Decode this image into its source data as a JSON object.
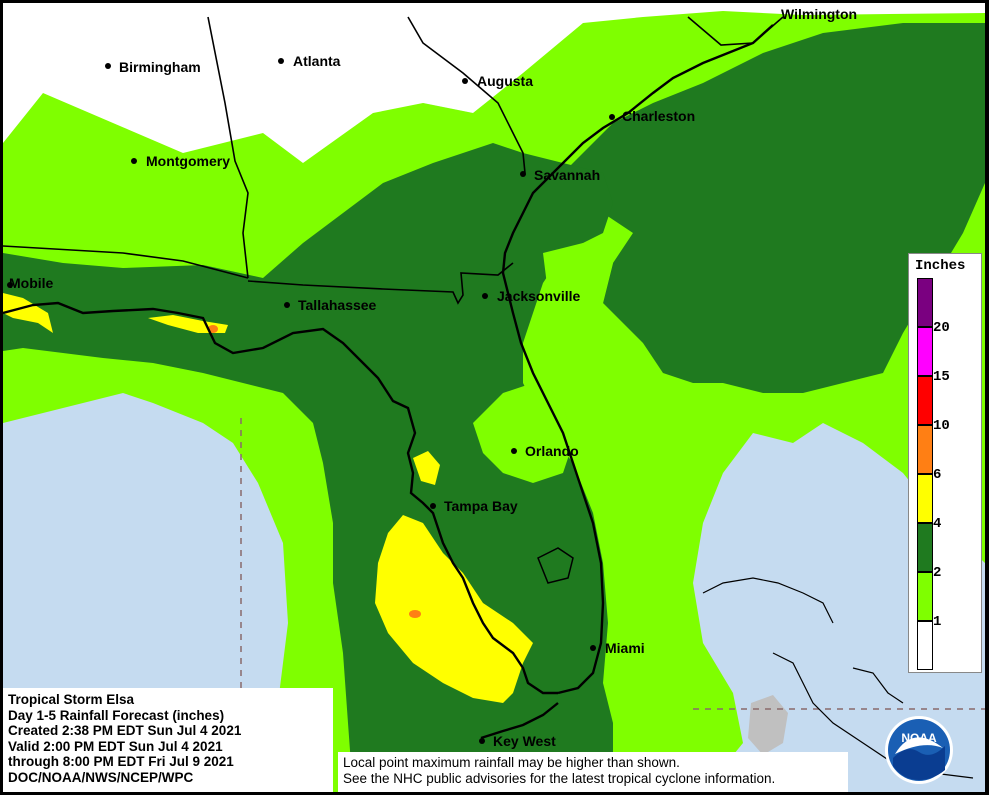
{
  "cities": [
    {
      "name": "Wilmington",
      "label": "Wilmington",
      "dot": false
    },
    {
      "name": "Birmingham",
      "label": "Birmingham",
      "dot": true
    },
    {
      "name": "Atlanta",
      "label": "Atlanta",
      "dot": true
    },
    {
      "name": "Augusta",
      "label": "Augusta",
      "dot": true
    },
    {
      "name": "Charleston",
      "label": "Charleston",
      "dot": true
    },
    {
      "name": "Montgomery",
      "label": "Montgomery",
      "dot": true
    },
    {
      "name": "Savannah",
      "label": "Savannah",
      "dot": true
    },
    {
      "name": "Mobile",
      "label": "Mobile",
      "dot": true
    },
    {
      "name": "Tallahassee",
      "label": "Tallahassee",
      "dot": true
    },
    {
      "name": "Jacksonville",
      "label": "Jacksonville",
      "dot": true
    },
    {
      "name": "Orlando",
      "label": "Orlando",
      "dot": true
    },
    {
      "name": "Tampa Bay",
      "label": "Tampa Bay",
      "dot": true
    },
    {
      "name": "Miami",
      "label": "Miami",
      "dot": true
    },
    {
      "name": "Key West",
      "label": "Key West",
      "dot": true
    }
  ],
  "legend": {
    "title": "Inches",
    "levels": [
      {
        "label": "20",
        "color": "#7a0080"
      },
      {
        "label": "15",
        "color": "#ff00ff"
      },
      {
        "label": "10",
        "color": "#ff0000"
      },
      {
        "label": "6",
        "color": "#ff7f14"
      },
      {
        "label": "4",
        "color": "#ffff00"
      },
      {
        "label": "2",
        "color": "#1f7a1f"
      },
      {
        "label": "1",
        "color": "#7fff00"
      },
      {
        "label": "",
        "color": "#ffffff"
      }
    ]
  },
  "info": {
    "line1": "Tropical Storm Elsa",
    "line2": "Day 1-5 Rainfall Forecast (inches)",
    "line3": "Created 2:38 PM EDT Sun Jul 4 2021",
    "line4": "Valid 2:00 PM EDT Sun Jul 4 2021",
    "line5": "through 8:00 PM EDT Fri Jul 9 2021",
    "line6": "DOC/NOAA/NWS/NCEP/WPC"
  },
  "note": {
    "line1": "Local point maximum rainfall may be higher than shown.",
    "line2": "See the NHC public advisories for the latest tropical cyclone information."
  },
  "logo": {
    "text": "NOAA"
  },
  "colors": {
    "ocean": "#c5dbf0",
    "land_none": "#ffffff",
    "rain_1in": "#7fff00",
    "rain_2in": "#1f7a1f",
    "rain_4in": "#ffff00",
    "rain_6in": "#ff7f14",
    "border": "#000000"
  }
}
